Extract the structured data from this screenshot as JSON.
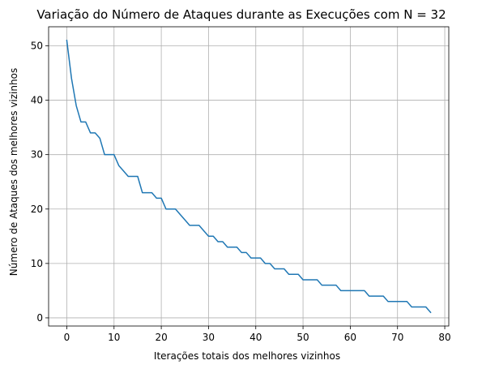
{
  "chart_data": {
    "type": "line",
    "title": "Variação do Número de Ataques durante as Execuções com N = 32",
    "xlabel": "Iterações totais dos melhores vizinhos",
    "ylabel": "Número de Ataques dos melhores vizinhos",
    "xlim": [
      -3.85,
      80.85
    ],
    "ylim": [
      -1.5,
      53.5
    ],
    "xticks": [
      0,
      10,
      20,
      30,
      40,
      50,
      60,
      70,
      80
    ],
    "yticks": [
      0,
      10,
      20,
      30,
      40,
      50
    ],
    "grid": true,
    "series": [
      {
        "color": "#1f77b4",
        "x": [
          0,
          1,
          2,
          3,
          4,
          5,
          6,
          7,
          8,
          9,
          10,
          11,
          12,
          13,
          14,
          15,
          16,
          17,
          18,
          19,
          20,
          21,
          22,
          23,
          24,
          25,
          26,
          27,
          28,
          29,
          30,
          31,
          32,
          33,
          34,
          35,
          36,
          37,
          38,
          39,
          40,
          41,
          42,
          43,
          44,
          45,
          46,
          47,
          48,
          49,
          50,
          51,
          52,
          53,
          54,
          55,
          56,
          57,
          58,
          59,
          60,
          61,
          62,
          63,
          64,
          65,
          66,
          67,
          68,
          69,
          70,
          71,
          72,
          73,
          74,
          75,
          76,
          77
        ],
        "y": [
          51,
          44,
          39,
          36,
          36,
          34,
          34,
          33,
          30,
          30,
          30,
          28,
          27,
          26,
          26,
          26,
          23,
          23,
          23,
          22,
          22,
          20,
          20,
          20,
          19,
          18,
          17,
          17,
          17,
          16,
          15,
          15,
          14,
          14,
          13,
          13,
          13,
          12,
          12,
          11,
          11,
          11,
          10,
          10,
          9,
          9,
          9,
          8,
          8,
          8,
          7,
          7,
          7,
          7,
          6,
          6,
          6,
          6,
          5,
          5,
          5,
          5,
          5,
          5,
          4,
          4,
          4,
          4,
          3,
          3,
          3,
          3,
          3,
          2,
          2,
          2,
          2,
          1
        ]
      }
    ]
  }
}
